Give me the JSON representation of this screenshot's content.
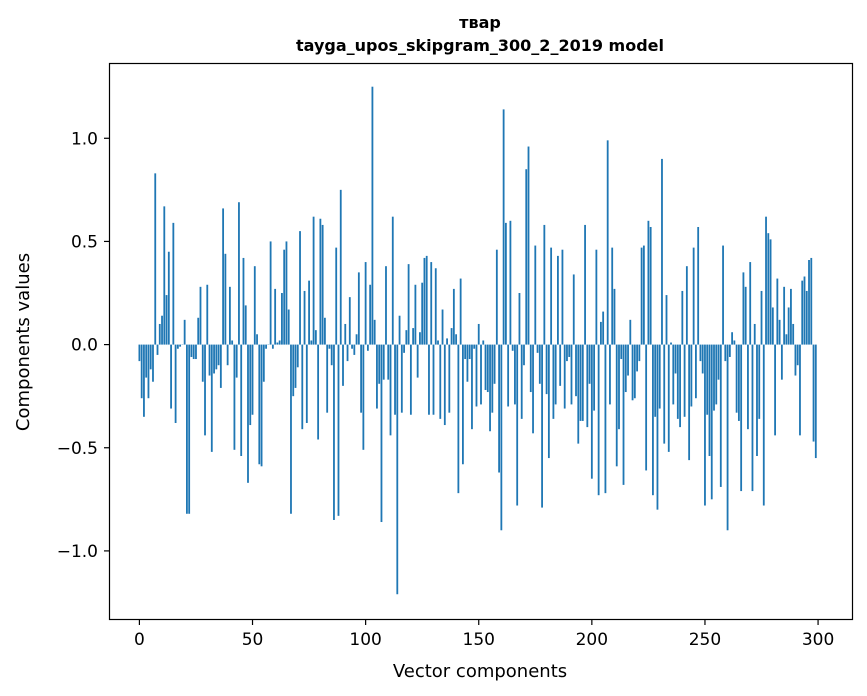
{
  "chart_data": {
    "type": "bar",
    "title": "твар",
    "subtitle": "tayga_upos_skipgram_300_2_2019 model",
    "xlabel": "Vector components",
    "ylabel": "Components values",
    "xlim": [
      -13,
      315
    ],
    "ylim": [
      -1.33,
      1.36
    ],
    "xticks": [
      0,
      50,
      100,
      150,
      200,
      250,
      300
    ],
    "xtick_labels": [
      "0",
      "50",
      "100",
      "150",
      "200",
      "250",
      "300"
    ],
    "yticks": [
      -1.0,
      -0.5,
      0.0,
      0.5,
      1.0
    ],
    "ytick_labels": [
      "−1.0",
      "−0.5",
      "0.0",
      "0.5",
      "1.0"
    ],
    "bar_color": "#1f77b4",
    "grid": false,
    "values": [
      -0.08,
      -0.26,
      -0.35,
      -0.16,
      -0.26,
      -0.12,
      -0.18,
      0.83,
      -0.05,
      0.1,
      0.14,
      0.67,
      0.24,
      0.45,
      -0.31,
      0.59,
      -0.38,
      -0.02,
      -0.01,
      0.0,
      0.12,
      -0.82,
      -0.82,
      -0.06,
      -0.07,
      -0.07,
      0.13,
      0.28,
      -0.18,
      -0.44,
      0.29,
      -0.15,
      -0.52,
      -0.14,
      -0.12,
      -0.1,
      -0.21,
      0.66,
      0.44,
      -0.1,
      0.28,
      0.02,
      -0.51,
      -0.16,
      0.69,
      -0.54,
      0.42,
      0.19,
      -0.67,
      -0.39,
      -0.34,
      0.38,
      0.05,
      -0.58,
      -0.59,
      -0.18,
      -0.02,
      0.0,
      0.5,
      -0.02,
      0.27,
      0.01,
      0.02,
      0.25,
      0.46,
      0.5,
      0.17,
      -0.82,
      -0.25,
      -0.21,
      -0.11,
      0.55,
      -0.41,
      0.26,
      -0.38,
      0.31,
      0.02,
      0.62,
      0.07,
      -0.46,
      0.61,
      0.58,
      0.13,
      -0.33,
      -0.02,
      -0.1,
      -0.85,
      0.47,
      -0.83,
      0.75,
      -0.2,
      0.1,
      -0.08,
      0.23,
      -0.02,
      -0.05,
      0.05,
      0.35,
      -0.33,
      -0.51,
      0.4,
      -0.03,
      0.29,
      1.25,
      0.12,
      -0.31,
      -0.19,
      -0.86,
      -0.17,
      0.38,
      -0.17,
      -0.44,
      0.62,
      -0.34,
      -1.21,
      0.14,
      -0.33,
      -0.04,
      0.07,
      0.39,
      -0.34,
      0.08,
      0.29,
      -0.16,
      0.06,
      0.3,
      0.42,
      0.43,
      -0.34,
      0.4,
      -0.34,
      0.37,
      0.02,
      -0.36,
      0.17,
      -0.39,
      0.03,
      -0.33,
      0.08,
      0.27,
      0.05,
      -0.72,
      0.32,
      -0.58,
      -0.07,
      -0.18,
      -0.07,
      -0.41,
      -0.02,
      -0.3,
      0.1,
      -0.29,
      0.02,
      -0.22,
      -0.23,
      -0.42,
      -0.33,
      -0.19,
      0.46,
      -0.62,
      -0.9,
      1.14,
      0.59,
      -0.3,
      0.6,
      -0.03,
      -0.29,
      -0.78,
      0.25,
      -0.36,
      -0.1,
      0.85,
      0.96,
      -0.23,
      -0.43,
      0.48,
      -0.04,
      -0.19,
      -0.79,
      0.58,
      -0.24,
      -0.55,
      0.47,
      -0.36,
      -0.29,
      0.43,
      -0.2,
      0.46,
      -0.31,
      -0.08,
      -0.06,
      -0.29,
      0.34,
      -0.25,
      -0.48,
      -0.37,
      -0.37,
      0.58,
      -0.4,
      -0.19,
      -0.65,
      -0.32,
      0.46,
      -0.73,
      0.11,
      0.16,
      -0.72,
      0.99,
      -0.29,
      0.47,
      0.27,
      -0.59,
      -0.41,
      -0.07,
      -0.68,
      -0.23,
      -0.15,
      0.12,
      -0.27,
      -0.26,
      -0.13,
      -0.08,
      0.47,
      0.48,
      -0.61,
      0.6,
      0.57,
      -0.73,
      -0.35,
      -0.8,
      -0.31,
      0.9,
      -0.48,
      0.24,
      -0.52,
      0.01,
      -0.29,
      -0.14,
      -0.36,
      -0.4,
      0.26,
      -0.35,
      0.38,
      -0.56,
      -0.3,
      0.47,
      -0.26,
      0.57,
      -0.08,
      -0.14,
      -0.78,
      -0.34,
      -0.54,
      -0.75,
      -0.32,
      -0.29,
      -0.17,
      -0.69,
      0.48,
      -0.08,
      -0.9,
      -0.06,
      0.06,
      0.02,
      -0.33,
      -0.37,
      -0.71,
      0.35,
      0.28,
      -0.41,
      0.4,
      -0.71,
      0.1,
      -0.54,
      -0.36,
      0.26,
      -0.78,
      0.62,
      0.54,
      0.51,
      0.18,
      -0.44,
      0.32,
      0.12,
      -0.17,
      0.28,
      0.05,
      0.18,
      0.27,
      0.1,
      -0.15,
      -0.1,
      -0.44,
      0.31,
      0.33,
      0.26,
      0.41,
      0.42,
      -0.47,
      -0.55
    ]
  }
}
